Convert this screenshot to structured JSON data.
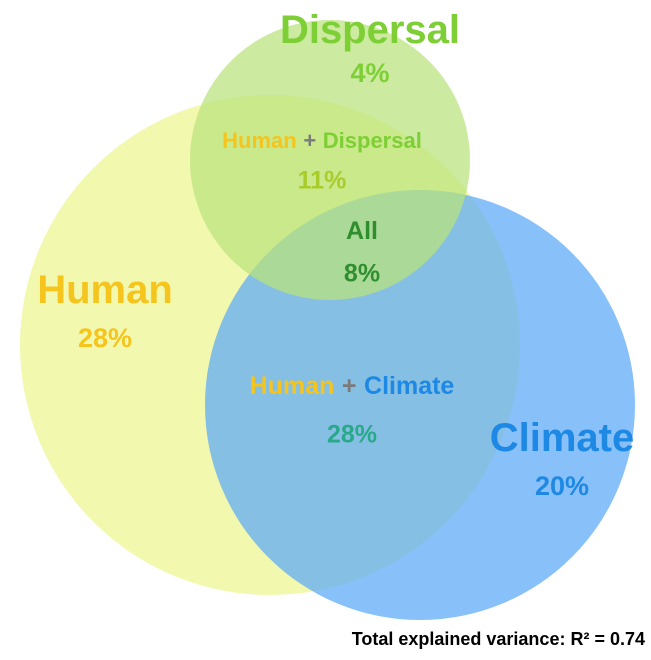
{
  "chart_data": {
    "type": "venn",
    "circles": [
      {
        "color": "#f2f7a6"
      },
      {
        "color": "#5aa9f6"
      },
      {
        "color": "#b9e37c"
      }
    ],
    "regions": [
      {
        "label": [
          {
            "text": "Dispersal",
            "color": "#7dcf35"
          }
        ],
        "value": 4,
        "value_label": "4%",
        "value_color": "#7dcf35"
      },
      {
        "label": [
          {
            "text": "Human",
            "color": "#f5c41d"
          },
          {
            "text": "+",
            "color": "#7a7a7a"
          },
          {
            "text": "Dispersal",
            "color": "#7dcf35"
          }
        ],
        "value": 11,
        "value_label": "11%",
        "value_color": "#a9cc2c"
      },
      {
        "label": [
          {
            "text": "All",
            "color": "#2f8f2f"
          }
        ],
        "value": 8,
        "value_label": "8%",
        "value_color": "#2f8f2f"
      },
      {
        "label": [
          {
            "text": "Human",
            "color": "#f5c41d"
          }
        ],
        "value": 28,
        "value_label": "28%",
        "value_color": "#f5c41d"
      },
      {
        "label": [
          {
            "text": "Human",
            "color": "#f5c41d"
          },
          {
            "text": "+",
            "color": "#7a7a7a"
          },
          {
            "text": "Climate",
            "color": "#1e88e5"
          }
        ],
        "value": 28,
        "value_label": "28%",
        "value_color": "#2aa88a"
      },
      {
        "label": [
          {
            "text": "Climate",
            "color": "#1e88e5"
          }
        ],
        "value": 20,
        "value_label": "20%",
        "value_color": "#1e88e5"
      }
    ],
    "note": "Total explained variance: R² = 0.74"
  }
}
